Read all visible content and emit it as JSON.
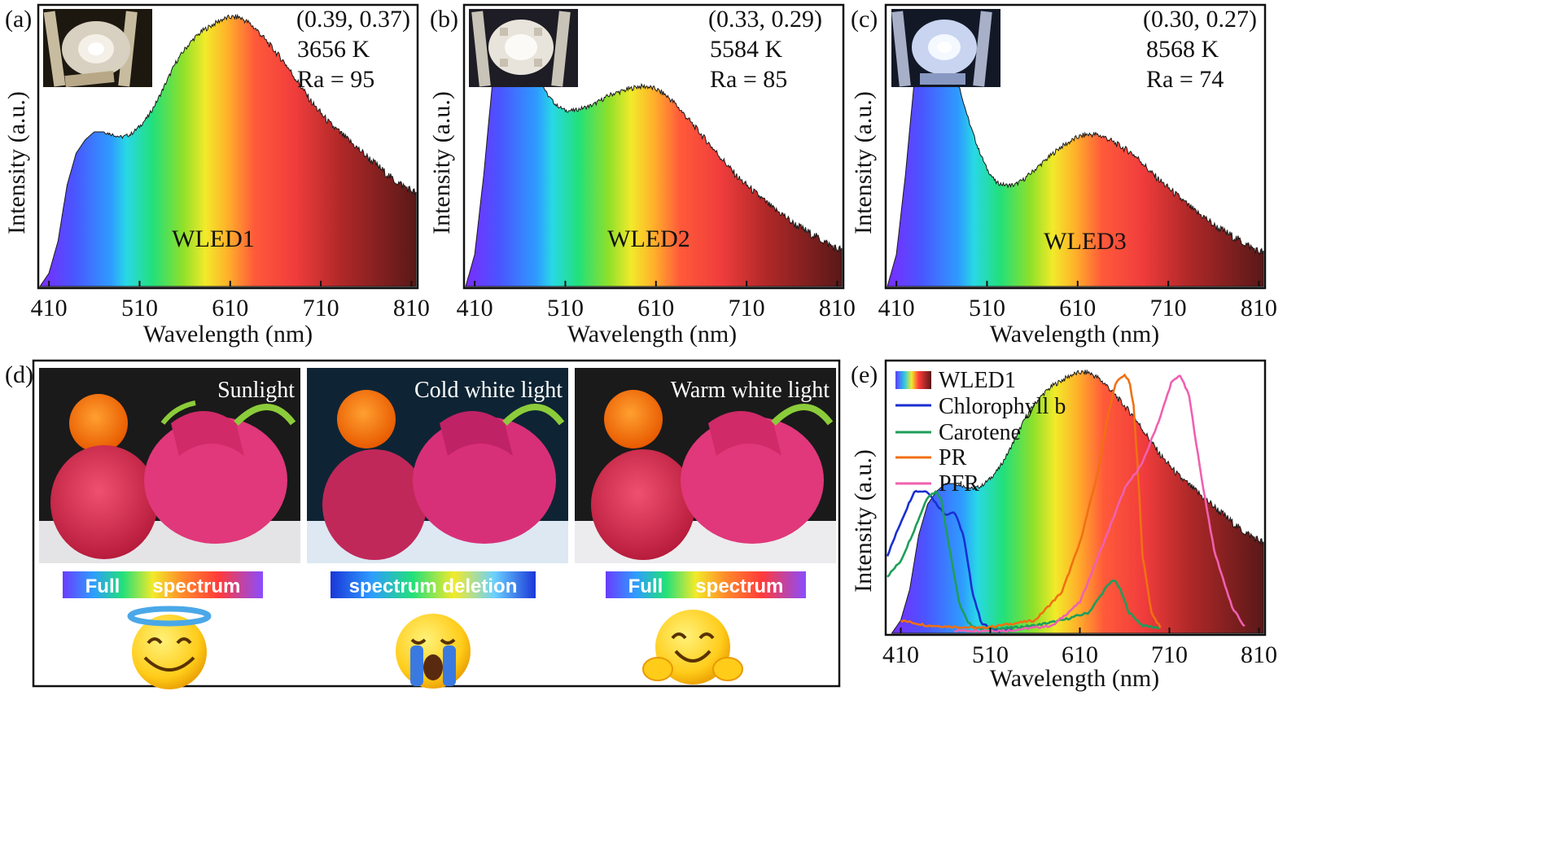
{
  "panels": {
    "a": {
      "label": "(a)",
      "coords": "(0.39, 0.37)",
      "cct": "3656 K",
      "ra": "Ra = 95"
    },
    "b": {
      "label": "(b)",
      "coords": "(0.33, 0.29)",
      "cct": "5584 K",
      "ra": "Ra = 85"
    },
    "c": {
      "label": "(c)",
      "coords": "(0.30, 0.27)",
      "cct": "8568 K",
      "ra": "Ra = 74"
    },
    "d": {
      "label": "(d)",
      "photos": [
        {
          "caption": "Sunlight",
          "bar_label": "Full      spectrum",
          "emoji": "halo-smile-emoji"
        },
        {
          "caption": "Cold white light",
          "bar_label": "spectrum deletion",
          "emoji": "crying-face-emoji"
        },
        {
          "caption": "Warm white light",
          "bar_label": "Full      spectrum",
          "emoji": "hugging-face-emoji"
        }
      ]
    },
    "e": {
      "label": "(e)"
    }
  },
  "colors": {
    "chlorophyll_b": "#1a2fd1",
    "carotene": "#1e9e5a",
    "pr": "#f07012",
    "pfr": "#f060b0",
    "frame": "#111111"
  },
  "chart_data": [
    {
      "type": "area",
      "panel": "a",
      "xlabel": "Wavelength (nm)",
      "ylabel": "Intensity (a.u.)",
      "xticks": [
        410,
        510,
        610,
        710,
        810
      ],
      "xlim": [
        400,
        815
      ],
      "ylim": [
        0,
        1.05
      ],
      "series": [
        {
          "name": "WLED1",
          "x": [
            400,
            410,
            420,
            430,
            440,
            450,
            460,
            470,
            480,
            490,
            500,
            510,
            520,
            530,
            540,
            550,
            560,
            570,
            580,
            590,
            600,
            610,
            620,
            630,
            640,
            650,
            660,
            670,
            680,
            690,
            700,
            710,
            720,
            730,
            740,
            750,
            760,
            770,
            780,
            790,
            800,
            810,
            815
          ],
          "y": [
            0.0,
            0.05,
            0.17,
            0.38,
            0.5,
            0.55,
            0.58,
            0.58,
            0.57,
            0.56,
            0.57,
            0.6,
            0.64,
            0.7,
            0.77,
            0.84,
            0.89,
            0.93,
            0.96,
            0.98,
            1.0,
            1.01,
            1.01,
            0.99,
            0.96,
            0.92,
            0.88,
            0.84,
            0.79,
            0.74,
            0.69,
            0.65,
            0.61,
            0.58,
            0.55,
            0.52,
            0.49,
            0.46,
            0.43,
            0.4,
            0.38,
            0.36,
            0.35
          ]
        }
      ]
    },
    {
      "type": "area",
      "panel": "b",
      "xlabel": "Wavelength (nm)",
      "ylabel": "Intensity (a.u.)",
      "xticks": [
        410,
        510,
        610,
        710,
        810
      ],
      "xlim": [
        400,
        815
      ],
      "ylim": [
        0,
        1.05
      ],
      "series": [
        {
          "name": "WLED2",
          "x": [
            400,
            410,
            420,
            430,
            440,
            450,
            455,
            460,
            470,
            480,
            490,
            500,
            510,
            520,
            530,
            540,
            550,
            560,
            570,
            580,
            590,
            600,
            610,
            620,
            630,
            640,
            650,
            660,
            670,
            680,
            690,
            700,
            710,
            720,
            730,
            740,
            750,
            760,
            770,
            780,
            790,
            800,
            810,
            815
          ],
          "y": [
            0.0,
            0.12,
            0.42,
            0.78,
            0.95,
            1.02,
            1.03,
            1.0,
            0.9,
            0.79,
            0.72,
            0.68,
            0.66,
            0.66,
            0.67,
            0.68,
            0.7,
            0.72,
            0.73,
            0.74,
            0.75,
            0.75,
            0.74,
            0.72,
            0.69,
            0.65,
            0.61,
            0.57,
            0.53,
            0.49,
            0.45,
            0.41,
            0.38,
            0.35,
            0.32,
            0.29,
            0.27,
            0.24,
            0.22,
            0.2,
            0.18,
            0.16,
            0.14,
            0.14
          ]
        }
      ]
    },
    {
      "type": "area",
      "panel": "c",
      "xlabel": "Wavelength (nm)",
      "ylabel": "Intensity (a.u.)",
      "xticks": [
        410,
        510,
        610,
        710,
        810
      ],
      "xlim": [
        400,
        815
      ],
      "ylim": [
        0,
        1.05
      ],
      "series": [
        {
          "name": "WLED3",
          "x": [
            400,
            410,
            420,
            430,
            440,
            450,
            455,
            460,
            470,
            480,
            490,
            500,
            510,
            520,
            530,
            540,
            550,
            560,
            570,
            580,
            590,
            600,
            610,
            620,
            630,
            640,
            650,
            660,
            670,
            680,
            690,
            700,
            710,
            720,
            730,
            740,
            750,
            760,
            770,
            780,
            790,
            800,
            810,
            815
          ],
          "y": [
            0.0,
            0.12,
            0.42,
            0.78,
            0.95,
            1.02,
            1.03,
            1.0,
            0.88,
            0.74,
            0.62,
            0.52,
            0.44,
            0.39,
            0.38,
            0.38,
            0.4,
            0.43,
            0.46,
            0.49,
            0.52,
            0.54,
            0.56,
            0.57,
            0.57,
            0.56,
            0.54,
            0.52,
            0.5,
            0.47,
            0.43,
            0.4,
            0.37,
            0.34,
            0.31,
            0.28,
            0.26,
            0.23,
            0.21,
            0.19,
            0.17,
            0.15,
            0.13,
            0.13
          ]
        }
      ]
    },
    {
      "type": "line",
      "panel": "e",
      "xlabel": "Wavelength (nm)",
      "ylabel": "Intensity (a.u.)",
      "xticks": [
        410,
        510,
        610,
        710,
        810
      ],
      "xlim": [
        395,
        815
      ],
      "ylim": [
        0,
        1.05
      ],
      "legend_position": "top-left",
      "series": [
        {
          "name": "WLED1",
          "kind": "area",
          "x": [
            400,
            410,
            420,
            430,
            440,
            450,
            460,
            470,
            480,
            490,
            500,
            510,
            520,
            530,
            540,
            550,
            560,
            570,
            580,
            590,
            600,
            610,
            620,
            630,
            640,
            650,
            660,
            670,
            680,
            690,
            700,
            710,
            720,
            730,
            740,
            750,
            760,
            770,
            780,
            790,
            800,
            810,
            815
          ],
          "y": [
            0.0,
            0.05,
            0.17,
            0.38,
            0.5,
            0.55,
            0.58,
            0.58,
            0.57,
            0.56,
            0.57,
            0.6,
            0.64,
            0.7,
            0.77,
            0.84,
            0.89,
            0.93,
            0.96,
            0.98,
            1.0,
            1.01,
            1.01,
            0.99,
            0.96,
            0.92,
            0.88,
            0.84,
            0.79,
            0.74,
            0.69,
            0.65,
            0.61,
            0.58,
            0.55,
            0.52,
            0.49,
            0.46,
            0.43,
            0.4,
            0.38,
            0.36,
            0.35
          ]
        },
        {
          "name": "Chlorophyll b",
          "x": [
            395,
            410,
            425,
            440,
            450,
            460,
            470,
            480,
            490,
            500,
            510,
            520,
            535
          ],
          "y": [
            0.3,
            0.43,
            0.55,
            0.55,
            0.5,
            0.46,
            0.47,
            0.38,
            0.16,
            0.04,
            0.02,
            0.01,
            0.01
          ]
        },
        {
          "name": "Carotene",
          "x": [
            395,
            410,
            425,
            440,
            450,
            455,
            465,
            475,
            485,
            495,
            510,
            530,
            560,
            590,
            620,
            640,
            648,
            655,
            665,
            680,
            700
          ],
          "y": [
            0.22,
            0.28,
            0.4,
            0.53,
            0.55,
            0.52,
            0.32,
            0.12,
            0.04,
            0.02,
            0.02,
            0.02,
            0.03,
            0.05,
            0.08,
            0.18,
            0.21,
            0.17,
            0.08,
            0.03,
            0.02
          ]
        },
        {
          "name": "PR",
          "x": [
            410,
            440,
            500,
            560,
            590,
            610,
            630,
            640,
            650,
            660,
            665,
            670,
            675,
            680,
            690,
            700
          ],
          "y": [
            0.05,
            0.03,
            0.02,
            0.05,
            0.16,
            0.35,
            0.62,
            0.82,
            0.97,
            1.0,
            0.98,
            0.88,
            0.62,
            0.3,
            0.08,
            0.02
          ]
        },
        {
          "name": "PFR",
          "x": [
            470,
            530,
            580,
            610,
            640,
            660,
            680,
            700,
            712,
            722,
            732,
            745,
            760,
            780,
            795
          ],
          "y": [
            0.01,
            0.01,
            0.03,
            0.12,
            0.38,
            0.56,
            0.66,
            0.84,
            0.97,
            1.0,
            0.92,
            0.62,
            0.32,
            0.1,
            0.02
          ]
        }
      ]
    }
  ]
}
